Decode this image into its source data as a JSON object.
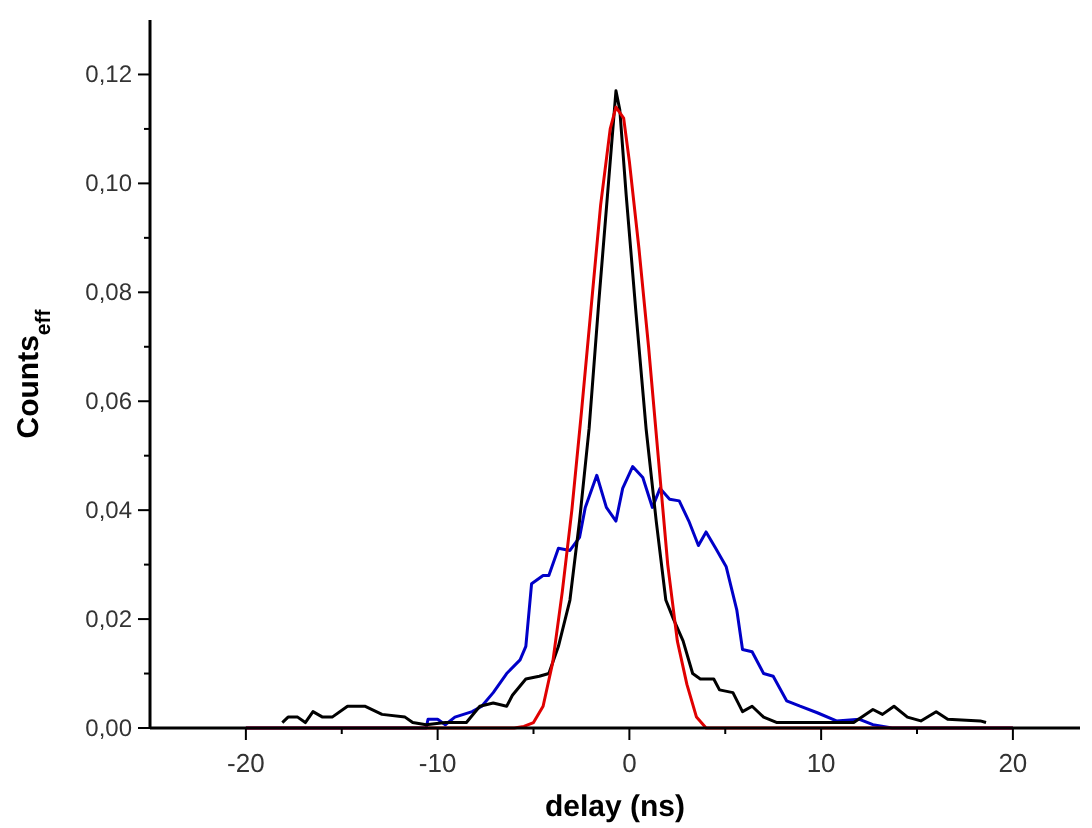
{
  "chart_data": {
    "type": "line",
    "xlabel": "delay (ns)",
    "ylabel": "Counts$_{eff}$",
    "xlim": [
      -25,
      23.5
    ],
    "ylim": [
      0,
      0.13
    ],
    "xticks": [
      -20,
      {
        "value": -15,
        "label": null
      },
      -10,
      {
        "value": -5,
        "label": null
      },
      0,
      {
        "value": 5,
        "label": null
      },
      10,
      {
        "value": 15,
        "label": null
      },
      20
    ],
    "yticks": [
      {
        "value": 0,
        "label": "0,00"
      },
      {
        "value": 0.01,
        "label": null
      },
      {
        "value": 0.02,
        "label": "0,02"
      },
      {
        "value": 0.03,
        "label": null
      },
      {
        "value": 0.04,
        "label": "0,04"
      },
      {
        "value": 0.05,
        "label": null
      },
      {
        "value": 0.06,
        "label": "0,06"
      },
      {
        "value": 0.07,
        "label": null
      },
      {
        "value": 0.08,
        "label": "0,08"
      },
      {
        "value": 0.09,
        "label": null
      },
      {
        "value": 0.1,
        "label": "0,10"
      },
      {
        "value": 0.11,
        "label": null
      },
      {
        "value": 0.12,
        "label": "0,12"
      }
    ],
    "grid": false,
    "marker": "none",
    "line_style": "solid",
    "series": [
      {
        "color": "#0000c8",
        "x": [
          -20,
          -10.6,
          -10.5,
          -10,
          -9.6,
          -9.1,
          -8.2,
          -7.7,
          -7.1,
          -6.4,
          -5.7,
          -5.4,
          -5.1,
          -4.5,
          -4.2,
          -3.7,
          -3.1,
          -2.6,
          -2.3,
          -1.7,
          -1.2,
          -0.7,
          -0.35,
          0.17,
          0.7,
          1.2,
          1.6,
          2.1,
          2.6,
          3.1,
          3.6,
          4,
          4.5,
          5.05,
          5.6,
          5.9,
          6.4,
          7,
          7.5,
          8.2,
          8.9,
          9.8,
          10.8,
          12,
          12.7,
          13.7,
          20
        ],
        "values": [
          0,
          0,
          0.0016,
          0.0016,
          0.0006,
          0.002,
          0.003,
          0.004,
          0.0065,
          0.01,
          0.0125,
          0.015,
          0.0265,
          0.028,
          0.028,
          0.033,
          0.0326,
          0.035,
          0.0405,
          0.0464,
          0.0405,
          0.038,
          0.044,
          0.048,
          0.046,
          0.0405,
          0.044,
          0.042,
          0.0417,
          0.038,
          0.0335,
          0.036,
          0.033,
          0.0296,
          0.0217,
          0.0144,
          0.014,
          0.01,
          0.0095,
          0.005,
          0.004,
          0.0028,
          0.0013,
          0.0016,
          0.0006,
          0,
          0
        ]
      },
      {
        "color": "#000000",
        "x": [
          -18.1,
          -17.8,
          -17.3,
          -16.9,
          -16.5,
          -16,
          -15.5,
          -14.7,
          -13.8,
          -12.9,
          -11.7,
          -11.3,
          -10.6,
          -9.6,
          -8.5,
          -7.8,
          -7.1,
          -6.4,
          -6.1,
          -5.4,
          -4.7,
          -4.2,
          -3.7,
          -3.1,
          -2.6,
          -2.1,
          -1.6,
          -1,
          -0.7,
          -0.5,
          -0.17,
          0.35,
          0.87,
          1.4,
          1.9,
          2.3,
          2.8,
          3.3,
          3.7,
          4.4,
          4.7,
          5.4,
          5.9,
          6.4,
          7,
          7.7,
          8.9,
          11.7,
          12.7,
          13.2,
          13.8,
          14.5,
          15.2,
          16,
          16.6,
          18.3,
          18.6
        ],
        "values": [
          0.001,
          0.002,
          0.002,
          0.001,
          0.003,
          0.002,
          0.002,
          0.004,
          0.004,
          0.0025,
          0.002,
          0.001,
          0.0006,
          0.001,
          0.001,
          0.004,
          0.0046,
          0.004,
          0.006,
          0.009,
          0.0095,
          0.01,
          0.015,
          0.0235,
          0.038,
          0.055,
          0.078,
          0.104,
          0.117,
          0.1135,
          0.098,
          0.076,
          0.055,
          0.038,
          0.0235,
          0.02,
          0.016,
          0.01,
          0.009,
          0.009,
          0.007,
          0.0065,
          0.003,
          0.004,
          0.002,
          0.001,
          0.001,
          0.001,
          0.0034,
          0.0025,
          0.004,
          0.002,
          0.0013,
          0.003,
          0.0016,
          0.0013,
          0.001
        ]
      },
      {
        "color": "#e00000",
        "x": [
          -20,
          -6,
          -5.5,
          -5,
          -4.5,
          -4,
          -3.5,
          -3,
          -2.5,
          -2,
          -1.5,
          -1,
          -0.7,
          -0.3,
          0,
          0.5,
          1,
          1.5,
          2,
          2.5,
          3,
          3.5,
          4,
          20
        ],
        "values": [
          0,
          0,
          0.0003,
          0.001,
          0.004,
          0.012,
          0.025,
          0.04,
          0.058,
          0.077,
          0.096,
          0.11,
          0.114,
          0.112,
          0.104,
          0.088,
          0.07,
          0.05,
          0.03,
          0.016,
          0.008,
          0.002,
          0,
          0
        ]
      }
    ]
  }
}
